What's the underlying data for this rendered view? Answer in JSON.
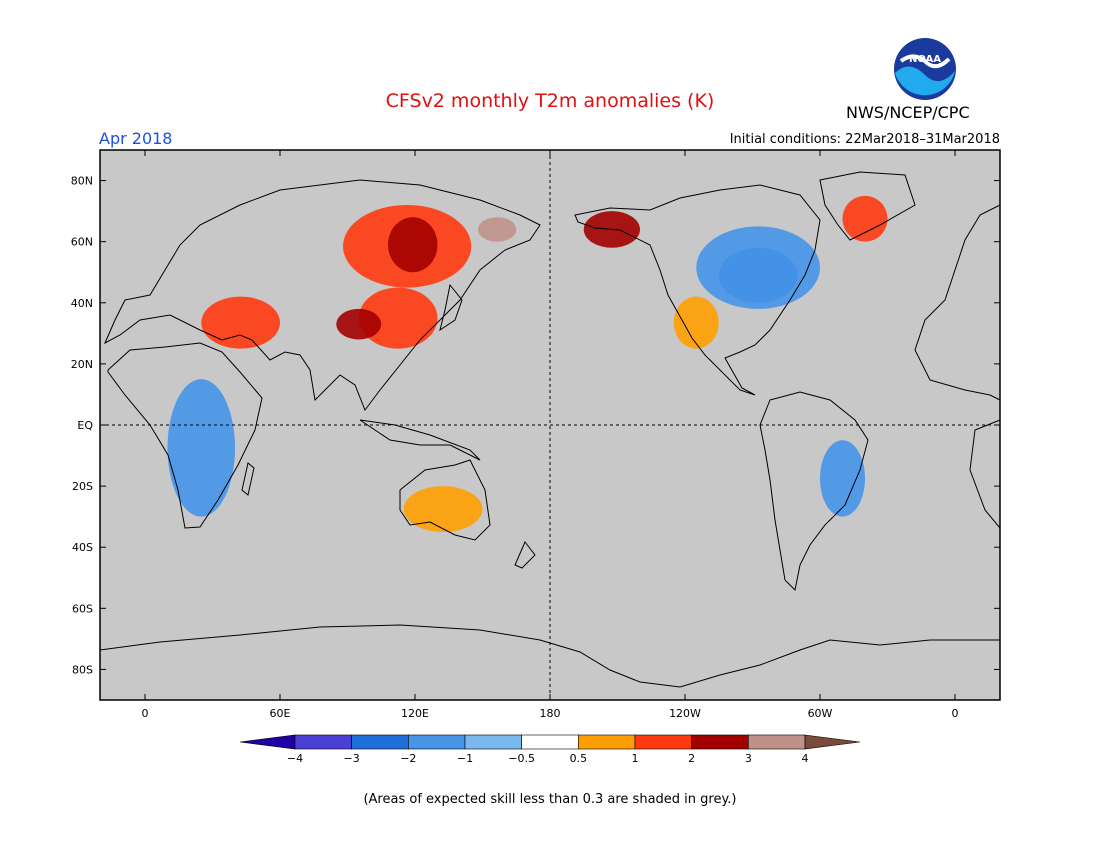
{
  "header": {
    "title": "CFSv2 monthly T2m anomalies (K)",
    "month": "Apr 2018",
    "initial_conditions": "Initial conditions: 22Mar2018–31Mar2018",
    "agency": "NWS/NCEP/CPC",
    "logo_text": "NOAA",
    "logo_icon": "noaa-logo-icon"
  },
  "map": {
    "projection": "equirectangular",
    "lon_range": [
      -20,
      380
    ],
    "lat_range": [
      -90,
      90
    ],
    "background_color": "#c8c8c8",
    "lat_ticks": [
      {
        "value": 80,
        "label": "80N"
      },
      {
        "value": 60,
        "label": "60N"
      },
      {
        "value": 40,
        "label": "40N"
      },
      {
        "value": 20,
        "label": "20N"
      },
      {
        "value": 0,
        "label": "EQ"
      },
      {
        "value": -20,
        "label": "20S"
      },
      {
        "value": -40,
        "label": "40S"
      },
      {
        "value": -60,
        "label": "60S"
      },
      {
        "value": -80,
        "label": "80S"
      }
    ],
    "lon_ticks": [
      {
        "value": 0,
        "label": "0"
      },
      {
        "value": 60,
        "label": "60E"
      },
      {
        "value": 120,
        "label": "120E"
      },
      {
        "value": 180,
        "label": "180"
      },
      {
        "value": 240,
        "label": "120W"
      },
      {
        "value": 300,
        "label": "60W"
      },
      {
        "value": 360,
        "label": "0"
      }
    ],
    "dashed_lines": {
      "equator_lat": 0,
      "dateline_lon": 180
    },
    "regions": [
      {
        "name": "siberia-warm",
        "color": "#ff3a0f",
        "lon": [
          88,
          145
        ],
        "lat": [
          45,
          72
        ]
      },
      {
        "name": "siberia-hot",
        "color": "#a30000",
        "lon": [
          108,
          130
        ],
        "lat": [
          50,
          68
        ]
      },
      {
        "name": "east-siberia-very-hot",
        "color": "#bf9289",
        "lon": [
          148,
          165
        ],
        "lat": [
          60,
          68
        ]
      },
      {
        "name": "china-warm",
        "color": "#ff3a0f",
        "lon": [
          95,
          130
        ],
        "lat": [
          25,
          45
        ]
      },
      {
        "name": "tibet-hot",
        "color": "#a30000",
        "lon": [
          85,
          105
        ],
        "lat": [
          28,
          38
        ]
      },
      {
        "name": "alaska-hot",
        "color": "#a30000",
        "lon": [
          195,
          220
        ],
        "lat": [
          58,
          70
        ]
      },
      {
        "name": "canada-cold",
        "color": "#1f6fd9",
        "lon": [
          255,
          290
        ],
        "lat": [
          40,
          58
        ]
      },
      {
        "name": "canada-cool",
        "color": "#4695e9",
        "lon": [
          245,
          300
        ],
        "lat": [
          38,
          65
        ]
      },
      {
        "name": "us-west-warm",
        "color": "#ff9e00",
        "lon": [
          235,
          255
        ],
        "lat": [
          25,
          42
        ]
      },
      {
        "name": "middle-east-warm",
        "color": "#ff3a0f",
        "lon": [
          25,
          60
        ],
        "lat": [
          25,
          42
        ]
      },
      {
        "name": "africa-cool",
        "color": "#4695e9",
        "lon": [
          10,
          40
        ],
        "lat": [
          -30,
          15
        ]
      },
      {
        "name": "australia-warm",
        "color": "#ff9e00",
        "lon": [
          115,
          150
        ],
        "lat": [
          -35,
          -20
        ]
      },
      {
        "name": "south-america-cool",
        "color": "#4695e9",
        "lon": [
          300,
          320
        ],
        "lat": [
          -30,
          -5
        ]
      },
      {
        "name": "greenland-warm",
        "color": "#ff3a0f",
        "lon": [
          310,
          330
        ],
        "lat": [
          60,
          75
        ]
      }
    ]
  },
  "legend": {
    "colors": [
      "#1f00a8",
      "#4a40d6",
      "#1f6fd9",
      "#4695e9",
      "#7bb8f0",
      "#ffffff",
      "#ff9e00",
      "#ff3a0f",
      "#a30000",
      "#bf9289",
      "#7a4a3a"
    ],
    "labels": [
      "−4",
      "−3",
      "−2",
      "−1",
      "−0.5",
      "0.5",
      "1",
      "2",
      "3",
      "4"
    ]
  },
  "caption": "(Areas of expected skill less than 0.3 are shaded in grey.)"
}
